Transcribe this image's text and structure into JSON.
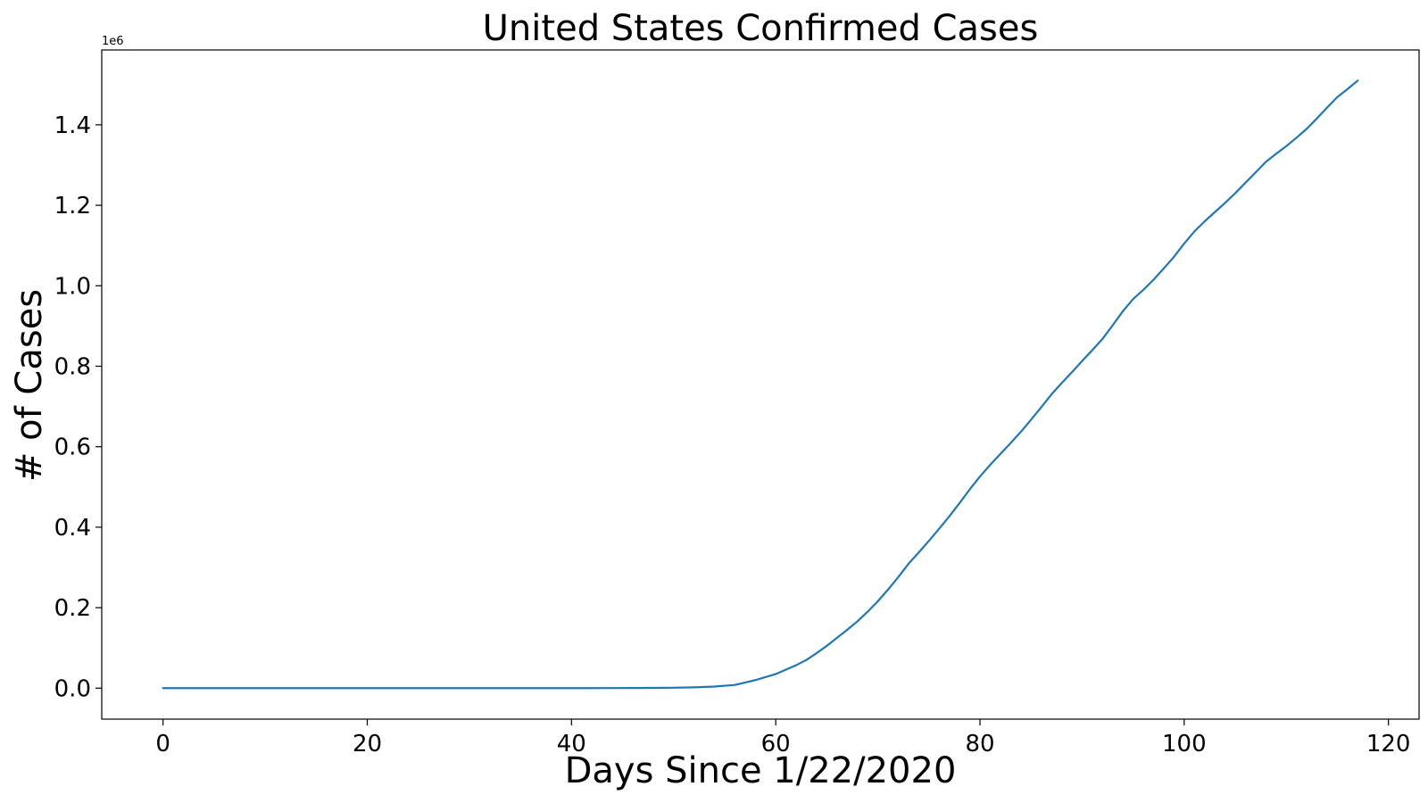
{
  "chart_data": {
    "type": "line",
    "title": "United States Confirmed Cases",
    "xlabel": "Days Since 1/22/2020",
    "ylabel": "# of Cases",
    "y_offset_label": "1e6",
    "xlim": [
      -6,
      123
    ],
    "ylim": [
      -0.077,
      1.586
    ],
    "y_scale_note": "values in millions (1e6)",
    "xticks": [
      0,
      20,
      40,
      60,
      80,
      100,
      120
    ],
    "xtick_labels": [
      "0",
      "20",
      "40",
      "60",
      "80",
      "100",
      "120"
    ],
    "yticks": [
      0.0,
      0.2,
      0.4,
      0.6,
      0.8,
      1.0,
      1.2,
      1.4
    ],
    "ytick_labels": [
      "0.0",
      "0.2",
      "0.4",
      "0.6",
      "0.8",
      "1.0",
      "1.2",
      "1.4"
    ],
    "grid": false,
    "series": [
      {
        "color": "#1f77b4",
        "x": [
          0,
          5,
          10,
          15,
          20,
          25,
          30,
          35,
          40,
          42,
          44,
          46,
          48,
          50,
          52,
          54,
          56,
          58,
          60,
          61,
          62,
          63,
          64,
          65,
          66,
          67,
          68,
          69,
          70,
          71,
          72,
          73,
          74,
          75,
          76,
          77,
          78,
          79,
          80,
          81,
          82,
          83,
          84,
          85,
          86,
          87,
          88,
          89,
          90,
          91,
          92,
          93,
          94,
          95,
          96,
          97,
          98,
          99,
          100,
          101,
          102,
          103,
          104,
          105,
          106,
          107,
          108,
          109,
          110,
          111,
          112,
          113,
          114,
          115,
          116,
          117
        ],
        "y": [
          0,
          0,
          0,
          0,
          0,
          0,
          0,
          0,
          0,
          0,
          0.0002,
          0.0004,
          0.0006,
          0.001,
          0.002,
          0.004,
          0.008,
          0.02,
          0.035,
          0.046,
          0.057,
          0.07,
          0.087,
          0.105,
          0.125,
          0.145,
          0.166,
          0.19,
          0.216,
          0.245,
          0.276,
          0.309,
          0.337,
          0.366,
          0.396,
          0.427,
          0.46,
          0.494,
          0.526,
          0.555,
          0.582,
          0.609,
          0.637,
          0.667,
          0.698,
          0.73,
          0.758,
          0.785,
          0.813,
          0.84,
          0.868,
          0.902,
          0.937,
          0.967,
          0.99,
          1.015,
          1.043,
          1.072,
          1.105,
          1.135,
          1.16,
          1.183,
          1.206,
          1.23,
          1.256,
          1.282,
          1.308,
          1.328,
          1.347,
          1.368,
          1.39,
          1.416,
          1.443,
          1.469,
          1.489,
          1.51
        ]
      }
    ]
  }
}
